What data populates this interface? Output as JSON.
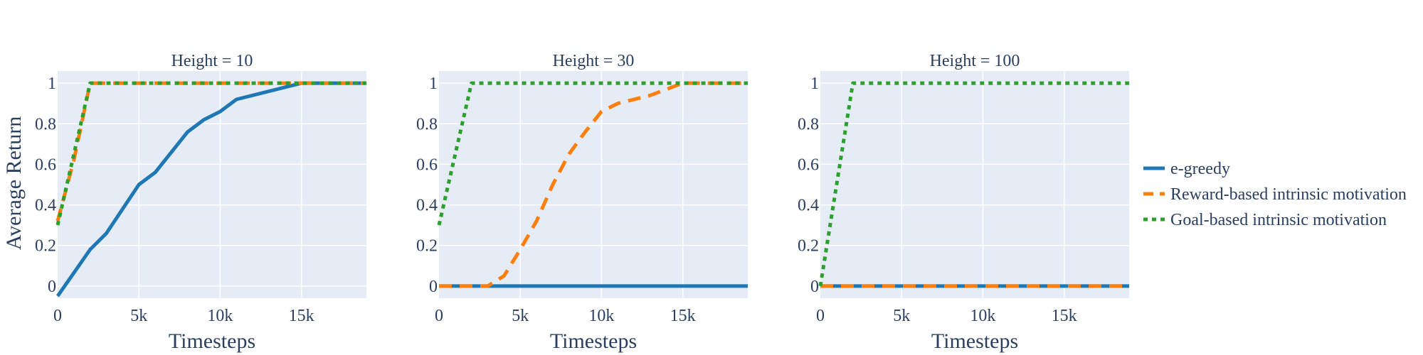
{
  "chart_data": {
    "type": "line",
    "y_axis_title": "Average Return",
    "series_styles": [
      {
        "name": "e-greedy",
        "color": "#1f77b4",
        "dash": "solid"
      },
      {
        "name": "Reward-based intrinsic motivation",
        "color": "#ff7f0e",
        "dash": "dash"
      },
      {
        "name": "Goal-based intrinsic motivation",
        "color": "#2ca02c",
        "dash": "dot"
      }
    ],
    "legend": {
      "position": "right"
    },
    "grid": true,
    "panels": [
      {
        "title": "Height = 10",
        "xlabel": "Timesteps",
        "xlim": [
          0,
          19000
        ],
        "ylim": [
          -0.06,
          1.06
        ],
        "xticks": [
          {
            "value": 0,
            "label": "0"
          },
          {
            "value": 5000,
            "label": "5k"
          },
          {
            "value": 10000,
            "label": "10k"
          },
          {
            "value": 15000,
            "label": "15k"
          }
        ],
        "yticks": [
          {
            "value": 0,
            "label": "0"
          },
          {
            "value": 0.2,
            "label": "0.2"
          },
          {
            "value": 0.4,
            "label": "0.4"
          },
          {
            "value": 0.6,
            "label": "0.6"
          },
          {
            "value": 0.8,
            "label": "0.8"
          },
          {
            "value": 1,
            "label": "1"
          }
        ],
        "series": [
          {
            "name": "e-greedy",
            "x": [
              0,
              2000,
              3000,
              5000,
              6000,
              8000,
              9000,
              10000,
              11000,
              15000,
              19000
            ],
            "y": [
              -0.05,
              0.18,
              0.26,
              0.5,
              0.56,
              0.76,
              0.82,
              0.86,
              0.92,
              1.0,
              1.0
            ]
          },
          {
            "name": "Reward-based intrinsic motivation",
            "x": [
              0,
              1000,
              2000,
              19000
            ],
            "y": [
              0.32,
              0.62,
              1.0,
              1.0
            ]
          },
          {
            "name": "Goal-based intrinsic motivation",
            "x": [
              0,
              2000,
              19000
            ],
            "y": [
              0.3,
              1.0,
              1.0
            ]
          }
        ]
      },
      {
        "title": "Height = 30",
        "xlabel": "Timesteps",
        "xlim": [
          0,
          19000
        ],
        "ylim": [
          -0.06,
          1.06
        ],
        "xticks": [
          {
            "value": 0,
            "label": "0"
          },
          {
            "value": 5000,
            "label": "5k"
          },
          {
            "value": 10000,
            "label": "10k"
          },
          {
            "value": 15000,
            "label": "15k"
          }
        ],
        "yticks": [
          {
            "value": 0,
            "label": "0"
          },
          {
            "value": 0.2,
            "label": "0.2"
          },
          {
            "value": 0.4,
            "label": "0.4"
          },
          {
            "value": 0.6,
            "label": "0.6"
          },
          {
            "value": 0.8,
            "label": "0.8"
          },
          {
            "value": 1,
            "label": "1"
          }
        ],
        "series": [
          {
            "name": "e-greedy",
            "x": [
              0,
              19000
            ],
            "y": [
              0,
              0
            ]
          },
          {
            "name": "Reward-based intrinsic motivation",
            "x": [
              0,
              3000,
              4000,
              5000,
              6000,
              7000,
              8000,
              9000,
              10000,
              11000,
              13000,
              15000,
              19000
            ],
            "y": [
              0,
              0,
              0.05,
              0.18,
              0.32,
              0.5,
              0.65,
              0.76,
              0.86,
              0.9,
              0.94,
              1.0,
              1.0
            ]
          },
          {
            "name": "Goal-based intrinsic motivation",
            "x": [
              0,
              2000,
              19000
            ],
            "y": [
              0.3,
              1.0,
              1.0
            ]
          }
        ]
      },
      {
        "title": "Height = 100",
        "xlabel": "Timesteps",
        "xlim": [
          0,
          19000
        ],
        "ylim": [
          -0.06,
          1.06
        ],
        "xticks": [
          {
            "value": 0,
            "label": "0"
          },
          {
            "value": 5000,
            "label": "5k"
          },
          {
            "value": 10000,
            "label": "10k"
          },
          {
            "value": 15000,
            "label": "15k"
          }
        ],
        "yticks": [
          {
            "value": 0,
            "label": "0"
          },
          {
            "value": 0.2,
            "label": "0.2"
          },
          {
            "value": 0.4,
            "label": "0.4"
          },
          {
            "value": 0.6,
            "label": "0.6"
          },
          {
            "value": 0.8,
            "label": "0.8"
          },
          {
            "value": 1,
            "label": "1"
          }
        ],
        "series": [
          {
            "name": "e-greedy",
            "x": [
              0,
              19000
            ],
            "y": [
              0,
              0
            ]
          },
          {
            "name": "Reward-based intrinsic motivation",
            "x": [
              0,
              19000
            ],
            "y": [
              0,
              0
            ]
          },
          {
            "name": "Goal-based intrinsic motivation",
            "x": [
              0,
              2000,
              19000
            ],
            "y": [
              0,
              1.0,
              1.0
            ]
          }
        ]
      }
    ]
  }
}
